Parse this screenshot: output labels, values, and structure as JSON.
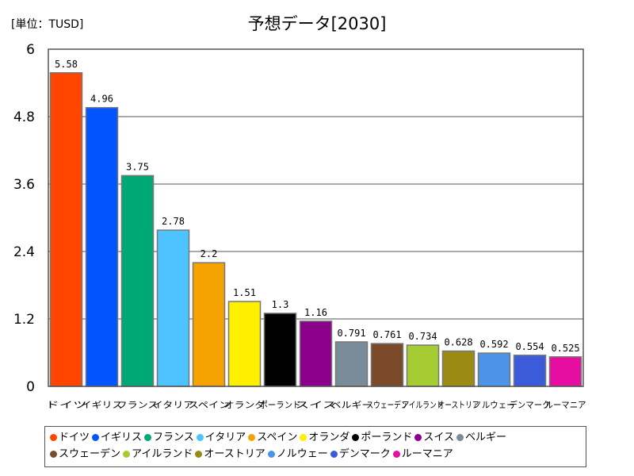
{
  "header": {
    "unit": "[単位：TUSD]",
    "title": "予想データ[2030]"
  },
  "chart_data": {
    "type": "bar",
    "title": "予想データ[2030]",
    "unit": "[単位：TUSD]",
    "ylim": [
      0,
      6
    ],
    "yticks": [
      "0",
      "1.2",
      "2.4",
      "3.6",
      "4.8",
      "6"
    ],
    "ytick_values": [
      0,
      1.2,
      2.4,
      3.6,
      4.8,
      6
    ],
    "grid": true,
    "legend_position": "bottom",
    "categories": [
      "ドイツ",
      "イギリス",
      "フランス",
      "イタリア",
      "スペイン",
      "オランダ",
      "ポーランド",
      "スイス",
      "ベルギー",
      "スウェーデン",
      "アイルランド",
      "オーストリア",
      "ノルウェー",
      "デンマーク",
      "ルーマニア"
    ],
    "values": [
      5.58,
      4.96,
      3.75,
      2.78,
      2.2,
      1.51,
      1.3,
      1.16,
      0.791,
      0.761,
      0.734,
      0.628,
      0.592,
      0.554,
      0.525
    ],
    "value_labels": [
      "5.58",
      "4.96",
      "3.75",
      "2.78",
      "2.2",
      "1.51",
      "1.3",
      "1.16",
      "0.791",
      "0.761",
      "0.734",
      "0.628",
      "0.592",
      "0.554",
      "0.525"
    ],
    "colors": [
      "#ff4500",
      "#0055ff",
      "#00a878",
      "#4dc3ff",
      "#f5a300",
      "#fff000",
      "#000000",
      "#8b008b",
      "#7a8b99",
      "#7a4a2a",
      "#a6cc33",
      "#9b8b14",
      "#4d94e6",
      "#3b5bdb",
      "#e60ea0"
    ]
  }
}
